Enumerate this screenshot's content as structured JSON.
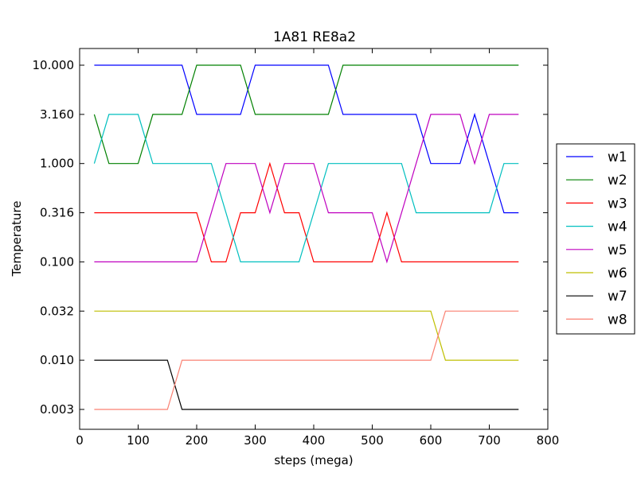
{
  "chart_data": {
    "type": "line",
    "title": "1A81 RE8a2",
    "xlabel": "steps (mega)",
    "ylabel": "Temperature",
    "xlim": [
      0,
      800
    ],
    "x_ticks": [
      0,
      100,
      200,
      300,
      400,
      500,
      600,
      700,
      800
    ],
    "y_scale": "log",
    "y_ticks": [
      0.00316,
      0.01,
      0.0316,
      0.1,
      0.316,
      1.0,
      3.16,
      10.0
    ],
    "y_tick_labels": [
      "0.003",
      "0.010",
      "0.032",
      "0.100",
      "0.316",
      "1.000",
      "3.160",
      "10.000"
    ],
    "grid": false,
    "legend": "outside-right",
    "x": [
      25,
      50,
      75,
      100,
      125,
      150,
      175,
      200,
      225,
      250,
      275,
      300,
      325,
      350,
      375,
      400,
      425,
      450,
      475,
      500,
      525,
      550,
      575,
      600,
      625,
      650,
      675,
      700,
      725,
      750
    ],
    "series": [
      {
        "name": "w1",
        "color": "#0000ff",
        "values": [
          10.0,
          10.0,
          10.0,
          10.0,
          10.0,
          10.0,
          10.0,
          3.16,
          3.16,
          3.16,
          3.16,
          10.0,
          10.0,
          10.0,
          10.0,
          10.0,
          10.0,
          3.16,
          3.16,
          3.16,
          3.16,
          3.16,
          3.16,
          1.0,
          1.0,
          1.0,
          3.16,
          1.0,
          0.316,
          0.316
        ]
      },
      {
        "name": "w2",
        "color": "#008000",
        "values": [
          3.16,
          1.0,
          1.0,
          1.0,
          3.16,
          3.16,
          3.16,
          10.0,
          10.0,
          10.0,
          10.0,
          3.16,
          3.16,
          3.16,
          3.16,
          3.16,
          3.16,
          10.0,
          10.0,
          10.0,
          10.0,
          10.0,
          10.0,
          10.0,
          10.0,
          10.0,
          10.0,
          10.0,
          10.0,
          10.0
        ]
      },
      {
        "name": "w3",
        "color": "#ff0000",
        "values": [
          0.316,
          0.316,
          0.316,
          0.316,
          0.316,
          0.316,
          0.316,
          0.316,
          0.1,
          0.1,
          0.316,
          0.316,
          1.0,
          0.316,
          0.316,
          0.1,
          0.1,
          0.1,
          0.1,
          0.1,
          0.316,
          0.1,
          0.1,
          0.1,
          0.1,
          0.1,
          0.1,
          0.1,
          0.1,
          0.1
        ]
      },
      {
        "name": "w4",
        "color": "#00bfbf",
        "values": [
          1.0,
          3.16,
          3.16,
          3.16,
          1.0,
          1.0,
          1.0,
          1.0,
          1.0,
          0.316,
          0.1,
          0.1,
          0.1,
          0.1,
          0.1,
          0.316,
          1.0,
          1.0,
          1.0,
          1.0,
          1.0,
          1.0,
          0.316,
          0.316,
          0.316,
          0.316,
          0.316,
          0.316,
          1.0,
          1.0
        ]
      },
      {
        "name": "w5",
        "color": "#bf00bf",
        "values": [
          0.1,
          0.1,
          0.1,
          0.1,
          0.1,
          0.1,
          0.1,
          0.1,
          0.316,
          1.0,
          1.0,
          1.0,
          0.316,
          1.0,
          1.0,
          1.0,
          0.316,
          0.316,
          0.316,
          0.316,
          0.1,
          0.316,
          1.0,
          3.16,
          3.16,
          3.16,
          1.0,
          3.16,
          3.16,
          3.16
        ]
      },
      {
        "name": "w6",
        "color": "#bfbf00",
        "values": [
          0.0316,
          0.0316,
          0.0316,
          0.0316,
          0.0316,
          0.0316,
          0.0316,
          0.0316,
          0.0316,
          0.0316,
          0.0316,
          0.0316,
          0.0316,
          0.0316,
          0.0316,
          0.0316,
          0.0316,
          0.0316,
          0.0316,
          0.0316,
          0.0316,
          0.0316,
          0.0316,
          0.0316,
          0.01,
          0.01,
          0.01,
          0.01,
          0.01,
          0.01
        ]
      },
      {
        "name": "w7",
        "color": "#000000",
        "values": [
          0.01,
          0.01,
          0.01,
          0.01,
          0.01,
          0.01,
          0.00316,
          0.00316,
          0.00316,
          0.00316,
          0.00316,
          0.00316,
          0.00316,
          0.00316,
          0.00316,
          0.00316,
          0.00316,
          0.00316,
          0.00316,
          0.00316,
          0.00316,
          0.00316,
          0.00316,
          0.00316,
          0.00316,
          0.00316,
          0.00316,
          0.00316,
          0.00316,
          0.00316
        ]
      },
      {
        "name": "w8",
        "color": "#fa8072",
        "values": [
          0.00316,
          0.00316,
          0.00316,
          0.00316,
          0.00316,
          0.00316,
          0.01,
          0.01,
          0.01,
          0.01,
          0.01,
          0.01,
          0.01,
          0.01,
          0.01,
          0.01,
          0.01,
          0.01,
          0.01,
          0.01,
          0.01,
          0.01,
          0.01,
          0.01,
          0.0316,
          0.0316,
          0.0316,
          0.0316,
          0.0316,
          0.0316
        ]
      }
    ]
  }
}
